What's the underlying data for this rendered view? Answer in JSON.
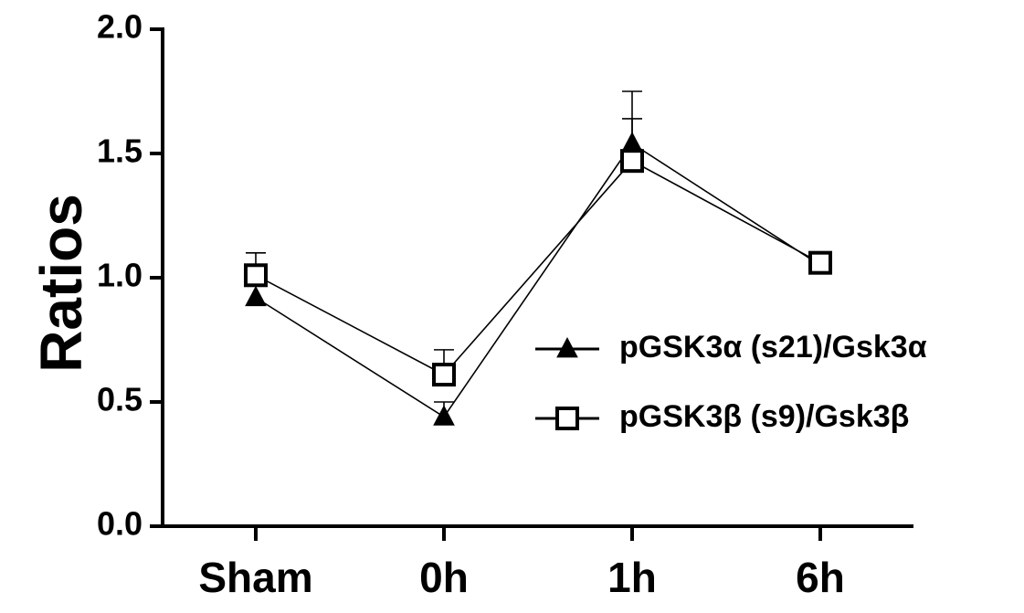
{
  "chart_data": {
    "type": "line",
    "ylabel": "Ratios",
    "xlabel": "",
    "categories": [
      "Sham",
      "0h",
      "1h",
      "6h"
    ],
    "ylim": [
      0,
      2.0
    ],
    "yticks": [
      0.0,
      0.5,
      1.0,
      1.5,
      2.0
    ],
    "ytick_labels": [
      "0.0",
      "0.5",
      "1.0",
      "1.5",
      "2.0"
    ],
    "grid": false,
    "legend_position": "right-center",
    "series": [
      {
        "name": "pGSK3α (s21)/Gsk3α",
        "marker": "filled-triangle",
        "values": [
          0.92,
          0.44,
          1.54,
          1.05
        ],
        "errors": [
          0.0,
          0.06,
          0.21,
          0.03
        ]
      },
      {
        "name": "pGSK3β (s9)/Gsk3β",
        "marker": "open-square",
        "values": [
          1.01,
          0.61,
          1.47,
          1.06
        ],
        "errors": [
          0.09,
          0.1,
          0.17,
          0.02
        ]
      }
    ]
  }
}
